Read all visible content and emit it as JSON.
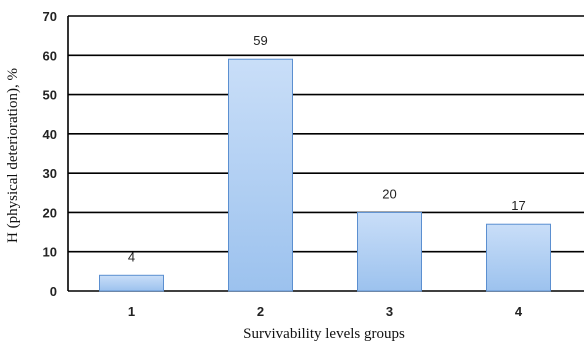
{
  "chart_data": {
    "type": "bar",
    "title": "",
    "xlabel": "Survivability levels groups",
    "ylabel": "H (physical deterioration), %",
    "categories": [
      "1",
      "2",
      "3",
      "4"
    ],
    "values": [
      4,
      59,
      20,
      17
    ],
    "data_labels": [
      "4",
      "59",
      "20",
      "17"
    ],
    "ylim": [
      0,
      70
    ],
    "yticks": [
      "0",
      "10",
      "20",
      "30",
      "40",
      "50",
      "60",
      "70"
    ],
    "grid": true,
    "legend": "none",
    "colors": {
      "bar_top": "#c9def8",
      "bar_bottom": "#9cc2ee",
      "bar_edge": "#5b8fd0",
      "grid": "#000000"
    }
  }
}
